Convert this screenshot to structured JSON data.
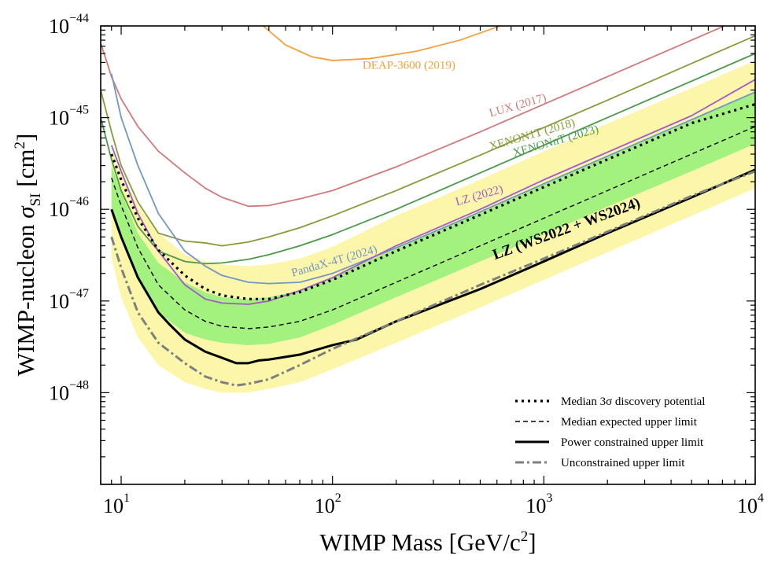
{
  "chart_data": {
    "type": "line",
    "xscale": "log",
    "yscale": "log",
    "xlim": [
      8,
      10000
    ],
    "ylim": [
      1e-49,
      1e-44
    ],
    "xlabel": "WIMP Mass [GeV/c",
    "xlabel_sup": "2",
    "xlabel_end": "]",
    "ylabel_pre": "WIMP-nucleon ",
    "ylabel_sigma": "σ",
    "ylabel_sub": "SI",
    "ylabel_unit": " [cm",
    "ylabel_unit_sup": "2",
    "ylabel_end": "]",
    "x_ticks": [
      {
        "value": 10,
        "base": "10",
        "exp": "1"
      },
      {
        "value": 100,
        "base": "10",
        "exp": "2"
      },
      {
        "value": 1000,
        "base": "10",
        "exp": "3"
      },
      {
        "value": 10000,
        "base": "10",
        "exp": "4"
      }
    ],
    "y_ticks": [
      {
        "value": 1e-48,
        "base": "10",
        "exp": "−48"
      },
      {
        "value": 1e-47,
        "base": "10",
        "exp": "−47"
      },
      {
        "value": 1e-46,
        "base": "10",
        "exp": "−46"
      },
      {
        "value": 1e-45,
        "base": "10",
        "exp": "−45"
      },
      {
        "value": 1e-44,
        "base": "10",
        "exp": "−44"
      }
    ],
    "bands": [
      {
        "name": "2sigma-band",
        "color": "#fbf6aa",
        "x": [
          9,
          10,
          12,
          15,
          20,
          25,
          30,
          40,
          50,
          70,
          100,
          200,
          500,
          1000,
          2000,
          5000,
          10000
        ],
        "lower": [
          3e-47,
          1.1e-47,
          4e-48,
          2e-48,
          1.3e-48,
          1.1e-48,
          1e-48,
          1e-48,
          1.1e-48,
          1.3e-48,
          1.8e-48,
          3.5e-48,
          8.5e-48,
          1.7e-47,
          3.4e-47,
          8.5e-47,
          1.7e-46
        ],
        "upper": [
          4.5e-46,
          2.6e-46,
          1.1e-46,
          5.5e-47,
          3.2e-47,
          2.7e-47,
          2.5e-47,
          2.4e-47,
          2.5e-47,
          2.9e-47,
          3.9e-47,
          8.5e-47,
          2.1e-46,
          4.3e-46,
          8.6e-46,
          2.1e-45,
          4.2e-45
        ]
      },
      {
        "name": "1sigma-band",
        "color": "#a3f27f",
        "x": [
          9,
          10,
          12,
          15,
          20,
          25,
          30,
          40,
          50,
          70,
          100,
          200,
          500,
          1000,
          2000,
          5000,
          10000
        ],
        "lower": [
          1e-46,
          5e-47,
          1.8e-47,
          7.5e-48,
          4.5e-48,
          3.8e-48,
          3.5e-48,
          3.3e-48,
          3.4e-48,
          4e-48,
          5.5e-48,
          1.1e-47,
          2.7e-47,
          5.3e-47,
          1.07e-46,
          2.6e-46,
          5.2e-46
        ],
        "upper": [
          3e-46,
          1.55e-46,
          5.5e-47,
          2.6e-47,
          1.6e-47,
          1.25e-47,
          1.1e-47,
          1.05e-47,
          1.1e-47,
          1.3e-47,
          1.8e-47,
          3.8e-47,
          9.5e-47,
          1.9e-46,
          3.8e-46,
          9.5e-46,
          1.9e-45
        ]
      }
    ],
    "series": [
      {
        "name": "DEAP-3600 (2019)",
        "color": "#f2a13d",
        "width": 1.8,
        "dash": "",
        "x": [
          47,
          60,
          80,
          100,
          150,
          250,
          400,
          700
        ],
        "y": [
          1e-44,
          6.2e-45,
          4.6e-45,
          4.2e-45,
          4.4e-45,
          5.3e-45,
          7e-45,
          1.1e-44
        ]
      },
      {
        "name": "LUX (2017)",
        "color": "#d1797a",
        "width": 1.8,
        "dash": "",
        "x": [
          8,
          9,
          10,
          12,
          15,
          20,
          25,
          30,
          40,
          50,
          70,
          100,
          200,
          500,
          1000,
          2000,
          5000,
          10000
        ],
        "y": [
          6.5e-45,
          2.8e-45,
          1.6e-45,
          8e-46,
          4.3e-46,
          2.5e-46,
          1.7e-46,
          1.35e-46,
          1.08e-46,
          1.1e-46,
          1.3e-46,
          1.6e-46,
          2.9e-46,
          7e-46,
          1.4e-45,
          2.8e-45,
          7e-45,
          1.4e-44
        ]
      },
      {
        "name": "XENON1T (2018)",
        "color": "#889b3b",
        "width": 1.8,
        "dash": "",
        "x": [
          8,
          9,
          10,
          12,
          15,
          20,
          25,
          30,
          40,
          50,
          70,
          100,
          200,
          500,
          1000,
          2000,
          5000,
          10000
        ],
        "y": [
          2e-45,
          7e-46,
          3e-46,
          1.2e-46,
          5.5e-47,
          4.5e-47,
          4.3e-47,
          4e-47,
          4.4e-47,
          5e-47,
          6.3e-47,
          8.5e-47,
          1.6e-46,
          3.9e-46,
          7.8e-46,
          1.55e-45,
          3.9e-45,
          7.8e-45
        ]
      },
      {
        "name": "XENONnT (2023)",
        "color": "#4a9a4a",
        "width": 1.8,
        "dash": "",
        "x": [
          8,
          9,
          10,
          12,
          15,
          20,
          25,
          30,
          40,
          50,
          70,
          100,
          200,
          500,
          1000,
          2000,
          5000,
          10000
        ],
        "y": [
          1e-45,
          3.5e-46,
          1.6e-46,
          6.5e-47,
          3.5e-47,
          2.7e-47,
          2.55e-47,
          2.6e-47,
          2.85e-47,
          3.2e-47,
          4e-47,
          5.3e-47,
          1e-46,
          2.5e-46,
          5e-46,
          1e-45,
          2.5e-45,
          5e-45
        ]
      },
      {
        "name": "PandaX-4T (2024)",
        "color": "#7397c4",
        "width": 1.8,
        "dash": "",
        "x": [
          9,
          10,
          12,
          15,
          20,
          25,
          30,
          40,
          50,
          70,
          100,
          200,
          400,
          1000,
          2000,
          5000,
          10000
        ],
        "y": [
          3e-45,
          1e-45,
          3e-46,
          9e-47,
          3.5e-47,
          2.4e-47,
          1.9e-47,
          1.6e-47,
          1.55e-47,
          1.6e-47,
          2e-47,
          3.8e-47,
          7.5e-47,
          1.9e-46,
          3.8e-46,
          9.5e-46,
          1.9e-45
        ]
      },
      {
        "name": "LZ (2022)",
        "color": "#a359c9",
        "width": 1.8,
        "dash": "",
        "x": [
          9,
          10,
          12,
          15,
          20,
          25,
          30,
          40,
          50,
          70,
          100,
          200,
          500,
          1000,
          2000,
          5000,
          10000
        ],
        "y": [
          5e-46,
          2.6e-46,
          9e-47,
          3.5e-47,
          1.5e-47,
          1.05e-47,
          9.5e-48,
          9.2e-48,
          1e-47,
          1.3e-47,
          1.8e-47,
          4e-47,
          1e-46,
          2.1e-46,
          4.2e-46,
          1.05e-45,
          2.6e-45
        ]
      },
      {
        "name": "Median 3σ discovery potential",
        "color": "#000000",
        "width": 3.2,
        "dash": "3,5",
        "x": [
          9,
          10,
          12,
          15,
          20,
          25,
          30,
          40,
          50,
          70,
          100,
          200,
          500,
          1000,
          2000,
          5000,
          10000
        ],
        "y": [
          4e-46,
          2.1e-46,
          8e-47,
          3.6e-47,
          1.9e-47,
          1.35e-47,
          1.15e-47,
          1.05e-47,
          1.05e-47,
          1.25e-47,
          1.7e-47,
          3.5e-47,
          8.7e-47,
          1.75e-46,
          3.5e-46,
          8.7e-46,
          1.4e-45
        ]
      },
      {
        "name": "Median expected upper limit",
        "color": "#000000",
        "width": 1.4,
        "dash": "6,4",
        "x": [
          9,
          10,
          12,
          15,
          20,
          25,
          30,
          40,
          50,
          70,
          100,
          200,
          500,
          1000,
          2000,
          5000,
          10000
        ],
        "y": [
          2.2e-46,
          1.1e-46,
          3.8e-47,
          1.5e-47,
          8e-48,
          6e-48,
          5.3e-48,
          5e-48,
          5.2e-48,
          6e-48,
          8e-48,
          1.6e-47,
          4e-47,
          8e-47,
          1.6e-46,
          4e-46,
          8e-46
        ]
      },
      {
        "name": "Power constrained upper limit",
        "color": "#000000",
        "width": 3.0,
        "dash": "",
        "x": [
          9,
          10,
          12,
          15,
          17,
          20,
          25,
          30,
          35,
          40,
          45,
          50,
          70,
          100,
          130,
          200,
          500,
          1000,
          2000,
          5000,
          10000
        ],
        "y": [
          1e-46,
          5e-47,
          1.8e-47,
          7.5e-48,
          5.5e-48,
          3.8e-48,
          2.8e-48,
          2.4e-48,
          2.1e-48,
          2.1e-48,
          2.25e-48,
          2.3e-48,
          2.6e-48,
          3.3e-48,
          3.8e-48,
          6e-48,
          1.35e-47,
          2.7e-47,
          5.5e-47,
          1.35e-46,
          2.7e-46
        ]
      },
      {
        "name": "Unconstrained upper limit",
        "color": "#7f7f7f",
        "width": 3.0,
        "dash": "11,4,3,4",
        "x": [
          9,
          10,
          12,
          15,
          20,
          25,
          30,
          35,
          40,
          50,
          70,
          100,
          200,
          500,
          1000,
          2000,
          5000,
          10000
        ],
        "y": [
          5e-47,
          2.3e-47,
          7.5e-48,
          3.5e-48,
          2.1e-48,
          1.5e-48,
          1.3e-48,
          1.2e-48,
          1.25e-48,
          1.4e-48,
          2e-48,
          3e-48,
          6e-48,
          1.5e-47,
          2.9e-47,
          5.7e-47,
          1.4e-46,
          2.6e-46
        ]
      }
    ],
    "annotations": [
      {
        "name": "deap-label",
        "text": "DEAP-3600 (2019)",
        "color": "#f2a13d",
        "x": 230,
        "y": 3.4e-45,
        "angle": 0
      },
      {
        "name": "lux-label",
        "text": "LUX (2017)",
        "color": "#d1797a",
        "x": 760,
        "y": 1.25e-45,
        "angle": -16
      },
      {
        "name": "xenon1t-label",
        "text": "XENON1T (2018)",
        "color": "#889b3b",
        "x": 890,
        "y": 6e-46,
        "angle": -16
      },
      {
        "name": "xenonnt-label",
        "text": "XENONnT (2023)",
        "color": "#4a9a4a",
        "x": 1150,
        "y": 5.1e-46,
        "angle": -16
      },
      {
        "name": "lz2022-label",
        "text": "LZ (2022)",
        "color": "#a359c9",
        "x": 500,
        "y": 1.3e-46,
        "angle": -16
      },
      {
        "name": "pandax-label",
        "text": "PandaX-4T (2024)",
        "color": "#7397c4",
        "x": 103,
        "y": 2.5e-47,
        "angle": -16
      },
      {
        "name": "lz-main-label",
        "text": "LZ (WS2022 + WS2024)",
        "color": "#000000",
        "x": 1300,
        "y": 5.5e-47,
        "angle": -20
      }
    ],
    "legend": {
      "position": "bottom-right",
      "entries": [
        {
          "label": "Median 3σ discovery potential",
          "color": "#000000",
          "dash": "3,5",
          "width": 3.2
        },
        {
          "label": "Median expected upper limit",
          "color": "#000000",
          "dash": "6,4",
          "width": 1.4
        },
        {
          "label": "Power constrained upper limit",
          "color": "#000000",
          "dash": "",
          "width": 3.0
        },
        {
          "label": "Unconstrained upper limit",
          "color": "#7f7f7f",
          "dash": "11,4,3,4",
          "width": 3.0
        }
      ]
    }
  }
}
